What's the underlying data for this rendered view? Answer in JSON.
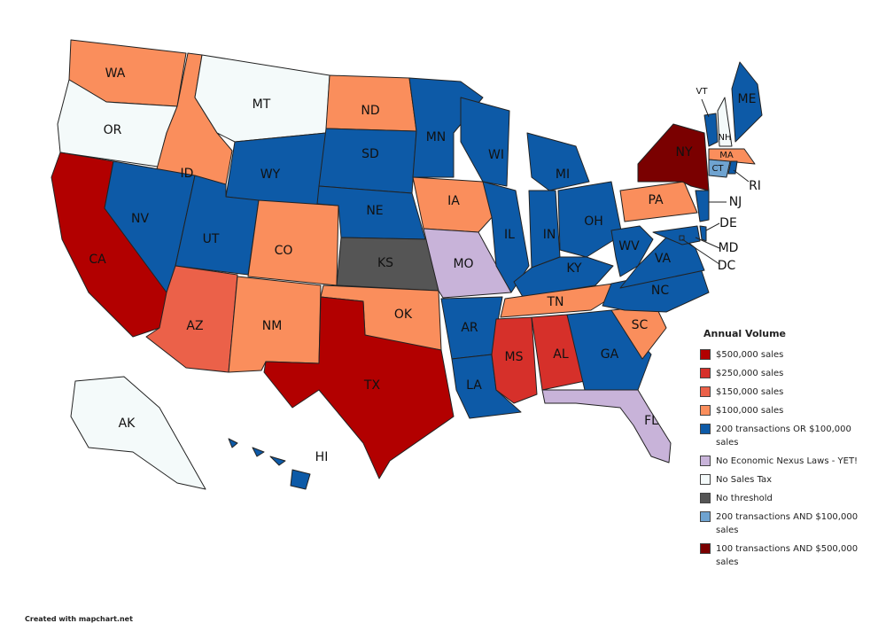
{
  "title": "Annual Volume",
  "legend": [
    {
      "label": "$500,000 sales",
      "color": "#b20000"
    },
    {
      "label": "$250,000 sales",
      "color": "#d6302a"
    },
    {
      "label": "$150,000 sales",
      "color": "#eb6149"
    },
    {
      "label": "$100,000 sales",
      "color": "#fa8e5c"
    },
    {
      "label": "200 transactions OR $100,000 sales",
      "color": "#0d5aa7"
    },
    {
      "label": "No Economic Nexus Laws - YET!",
      "color": "#c8b3d9"
    },
    {
      "label": "No Sales Tax",
      "color": "#f4fafa"
    },
    {
      "label": "No threshold",
      "color": "#555555"
    },
    {
      "label": "200 transactions AND $100,000 sales",
      "color": "#6fa3d0"
    },
    {
      "label": "100 transactions AND $500,000 sales",
      "color": "#7a0000"
    }
  ],
  "states": [
    {
      "label": "WA",
      "category": 3
    },
    {
      "label": "OR",
      "category": 6
    },
    {
      "label": "CA",
      "category": 0
    },
    {
      "label": "ID",
      "category": 3
    },
    {
      "label": "MT",
      "category": 6
    },
    {
      "label": "WY",
      "category": 4
    },
    {
      "label": "NV",
      "category": 4
    },
    {
      "label": "UT",
      "category": 4
    },
    {
      "label": "AZ",
      "category": 2
    },
    {
      "label": "CO",
      "category": 3
    },
    {
      "label": "NM",
      "category": 3
    },
    {
      "label": "ND",
      "category": 3
    },
    {
      "label": "SD",
      "category": 4
    },
    {
      "label": "NE",
      "category": 4
    },
    {
      "label": "KS",
      "category": 7
    },
    {
      "label": "OK",
      "category": 3
    },
    {
      "label": "TX",
      "category": 0
    },
    {
      "label": "MN",
      "category": 4
    },
    {
      "label": "IA",
      "category": 3
    },
    {
      "label": "MO",
      "category": 5
    },
    {
      "label": "AR",
      "category": 4
    },
    {
      "label": "LA",
      "category": 4
    },
    {
      "label": "WI",
      "category": 4
    },
    {
      "label": "IL",
      "category": 4
    },
    {
      "label": "MI",
      "category": 4
    },
    {
      "label": "IN",
      "category": 4
    },
    {
      "label": "OH",
      "category": 4
    },
    {
      "label": "KY",
      "category": 4
    },
    {
      "label": "TN",
      "category": 3
    },
    {
      "label": "MS",
      "category": 1
    },
    {
      "label": "AL",
      "category": 1
    },
    {
      "label": "GA",
      "category": 4
    },
    {
      "label": "FL",
      "category": 5
    },
    {
      "label": "SC",
      "category": 3
    },
    {
      "label": "NC",
      "category": 4
    },
    {
      "label": "VA",
      "category": 4
    },
    {
      "label": "WV",
      "category": 4
    },
    {
      "label": "PA",
      "category": 3
    },
    {
      "label": "NY",
      "category": 9
    },
    {
      "label": "NJ",
      "category": 4
    },
    {
      "label": "DE",
      "category": 4
    },
    {
      "label": "MD",
      "category": 4
    },
    {
      "label": "DC",
      "category": 4
    },
    {
      "label": "VT",
      "category": 4
    },
    {
      "label": "NH",
      "category": 6
    },
    {
      "label": "ME",
      "category": 4
    },
    {
      "label": "MA",
      "category": 3
    },
    {
      "label": "CT",
      "category": 8
    },
    {
      "label": "RI",
      "category": 4
    },
    {
      "label": "AK",
      "category": 6
    },
    {
      "label": "HI",
      "category": 4
    }
  ],
  "footer": "Created with mapchart.net"
}
